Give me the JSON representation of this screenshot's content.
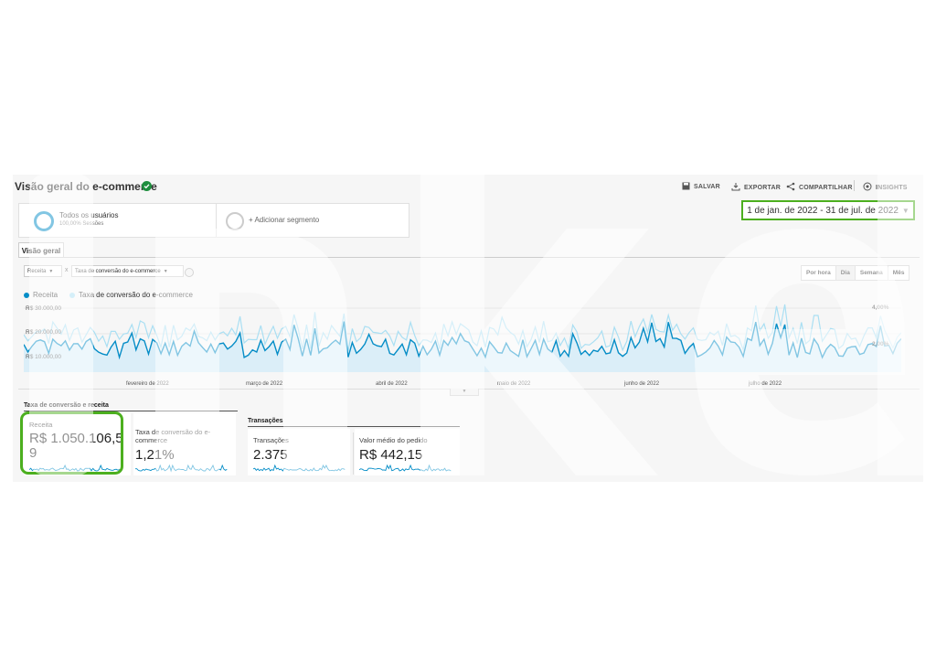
{
  "header": {
    "title": "Visão geral do e-commerce",
    "save_label": "SALVAR",
    "export_label": "EXPORTAR",
    "share_label": "COMPARTILHAR",
    "insights_label": "INSIGHTS"
  },
  "segments": {
    "all_users_label": "Todos os usuários",
    "all_users_sub": "100,00% Sessões",
    "add_segment_label": "+ Adicionar segmento"
  },
  "date_range": "1 de jan. de 2022 - 31 de jul. de 2022",
  "tabs": {
    "overview": "Visão geral"
  },
  "metric_selectors": {
    "primary": "Receita",
    "compare_sep": "x",
    "secondary": "Taxa de conversão do e-commerce"
  },
  "granularity": [
    "Por hora",
    "Dia",
    "Semana",
    "Mês"
  ],
  "granularity_selected": "Dia",
  "chart_data": {
    "type": "line",
    "series": [
      {
        "name": "Receita",
        "color": "#058dc7"
      },
      {
        "name": "Taxa de conversão do e-commerce",
        "color": "#aadff3"
      }
    ],
    "y_left_ticks": [
      "R$ 30.000,00",
      "R$ 20.000,00",
      "R$ 10.000,00"
    ],
    "y_right_ticks": [
      "4,00%",
      "2,00%"
    ],
    "x_ticks": [
      "fevereiro de 2022",
      "março de 2022",
      "abril de 2022",
      "maio de 2022",
      "junho de 2022",
      "julho de 2022"
    ]
  },
  "summary": {
    "section1_title": "Taxa de conversão e receita",
    "section2_title": "Transações",
    "revenue_label": "Receita",
    "revenue_value": "R$ 1.050.106,5",
    "revenue_value_wrap": "9",
    "conv_label_1": "Taxa de conversão do e-",
    "conv_label_2": "commerce",
    "conv_value": "1,21%",
    "trans_label": "Transações",
    "trans_value": "2.375",
    "aov_label": "Valor médio do pedido",
    "aov_value": "R$ 442,15"
  },
  "watermark_text": "Inkel"
}
